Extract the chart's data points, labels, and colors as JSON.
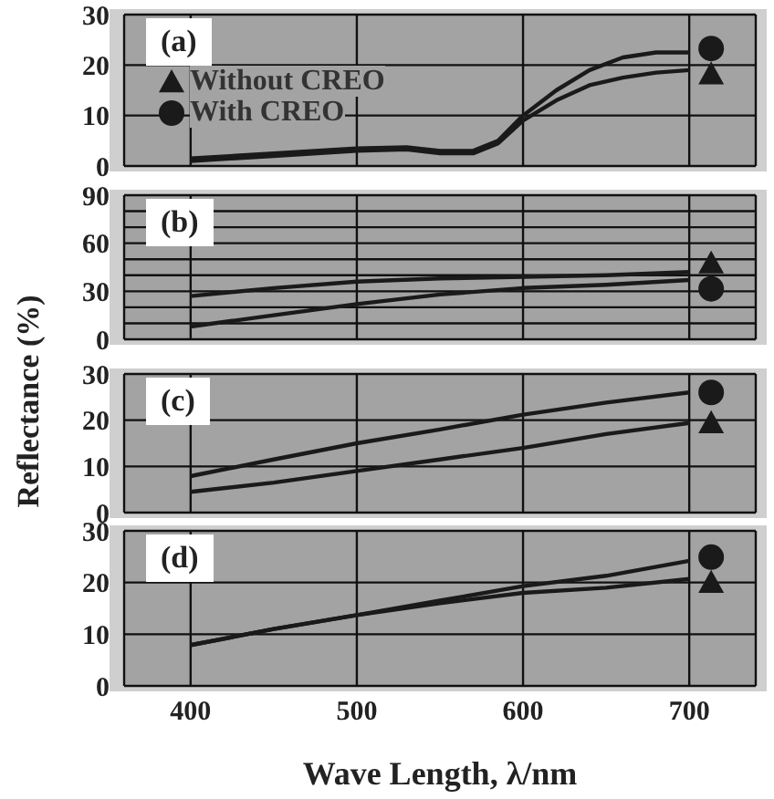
{
  "chart_data": [
    {
      "type": "line",
      "title": "(a)",
      "x": [
        400,
        450,
        500,
        530,
        550,
        570,
        585,
        600,
        620,
        640,
        660,
        680,
        700
      ],
      "xlim": [
        360,
        740
      ],
      "xticks": [
        400,
        500,
        600,
        700
      ],
      "ylim": [
        0,
        30
      ],
      "yticks": [
        0,
        10,
        20,
        30
      ],
      "grid": true,
      "legend": "left",
      "tick_labels": "y",
      "series": [
        {
          "name": "Without CREO",
          "color": "#1a1a1a",
          "values": [
            1,
            2,
            3,
            3.3,
            2.5,
            2.5,
            4.5,
            9,
            13,
            16,
            17.5,
            18.5,
            19
          ]
        },
        {
          "name": "With CREO",
          "color": "#1a1a1a",
          "values": [
            1.5,
            2.5,
            3.5,
            3.7,
            3,
            3,
            5,
            10,
            15,
            19,
            21.5,
            22.5,
            22.5
          ]
        }
      ]
    },
    {
      "type": "line",
      "title": "(b)",
      "x": [
        400,
        450,
        500,
        550,
        600,
        650,
        700
      ],
      "xlim": [
        360,
        740
      ],
      "xticks": [
        400,
        500,
        600,
        700
      ],
      "ylim": [
        0,
        90
      ],
      "yticks": [
        0,
        {
          "value": 10,
          "label": null
        },
        {
          "value": 20,
          "label": null
        },
        30,
        {
          "value": 40,
          "label": null
        },
        {
          "value": 50,
          "label": null
        },
        60,
        {
          "value": 70,
          "label": null
        },
        {
          "value": 80,
          "label": null
        },
        90
      ],
      "grid": true,
      "tick_labels": "y",
      "series": [
        {
          "color": "#1a1a1a",
          "values": [
            27,
            32,
            36,
            38,
            39,
            40,
            42
          ]
        },
        {
          "color": "#1a1a1a",
          "values": [
            8,
            15,
            22,
            28,
            32,
            34,
            37
          ]
        }
      ]
    },
    {
      "type": "line",
      "title": "(c)",
      "ylabel": "Reflectance (%)",
      "x": [
        400,
        450,
        500,
        550,
        600,
        650,
        700
      ],
      "xlim": [
        360,
        740
      ],
      "xticks": [
        400,
        500,
        600,
        700
      ],
      "ylim": [
        0,
        30
      ],
      "yticks": [
        0,
        10,
        20,
        30
      ],
      "grid": true,
      "tick_labels": "y",
      "series": [
        {
          "color": "#1a1a1a",
          "values": [
            4.5,
            6.5,
            9,
            11.5,
            14,
            17,
            19.4
          ]
        },
        {
          "color": "#1a1a1a",
          "values": [
            7.9,
            11.5,
            15,
            18,
            21.2,
            23.8,
            26
          ]
        }
      ]
    },
    {
      "type": "line",
      "title": "(d)",
      "xlabel": "Wave Length, λ/nm",
      "x": [
        400,
        450,
        500,
        550,
        600,
        650,
        700
      ],
      "xlim": [
        360,
        740
      ],
      "xticks": [
        400,
        500,
        600,
        700
      ],
      "ylim": [
        0,
        30
      ],
      "yticks": [
        0,
        10,
        20,
        30
      ],
      "grid": true,
      "series": [
        {
          "color": "#1a1a1a",
          "values": [
            7.9,
            11,
            13.7,
            16,
            18,
            19,
            20.7
          ]
        },
        {
          "color": "#1a1a1a",
          "values": [
            7.9,
            11,
            13.7,
            16.5,
            19.3,
            21.3,
            24.2
          ]
        }
      ]
    }
  ]
}
